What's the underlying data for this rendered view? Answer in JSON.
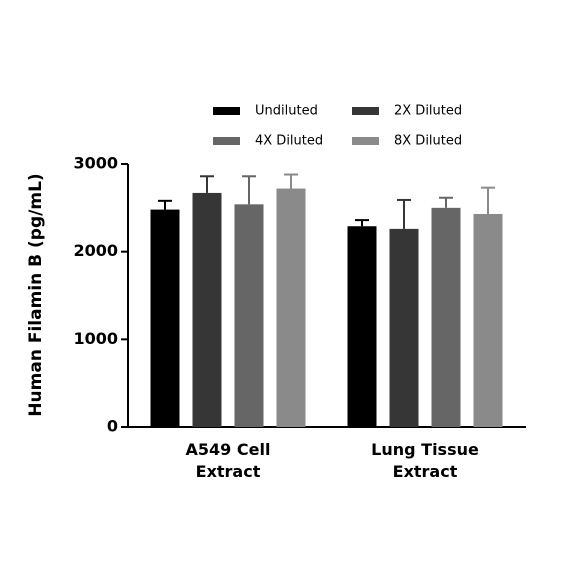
{
  "chart_data": {
    "type": "bar",
    "ylabel": "Human Filamin B (pg/mL)",
    "categories": [
      "A549 Cell Extract",
      "Lung Tissue Extract"
    ],
    "series": [
      {
        "name": "Undiluted",
        "color": "#000000",
        "values": [
          2480,
          2290
        ],
        "errors": [
          100,
          70
        ]
      },
      {
        "name": "2X Diluted",
        "color": "#363636",
        "values": [
          2670,
          2260
        ],
        "errors": [
          190,
          330
        ]
      },
      {
        "name": "4X Diluted",
        "color": "#666666",
        "values": [
          2540,
          2500
        ],
        "errors": [
          320,
          115
        ]
      },
      {
        "name": "8X Diluted",
        "color": "#8a8a8a",
        "values": [
          2720,
          2430
        ],
        "errors": [
          160,
          300
        ]
      }
    ],
    "ylim": [
      0,
      3000
    ],
    "yticks": [
      0,
      1000,
      2000,
      3000
    ]
  }
}
